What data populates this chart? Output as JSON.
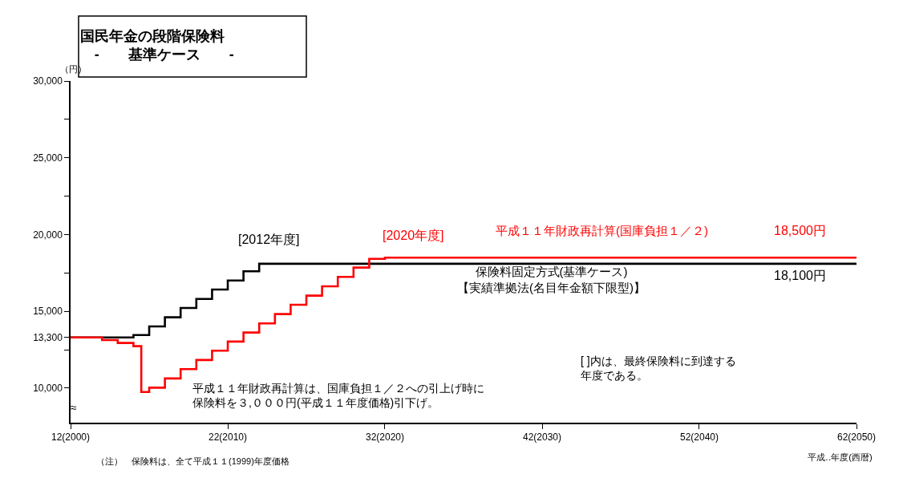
{
  "chart_data": {
    "type": "step",
    "title": "国民年金の段階保険料\n　-　　基準ケース　　-",
    "ylabel": "（円）",
    "xlabel": "平成‥年度(西暦)",
    "xlim": [
      "2000",
      "2050"
    ],
    "xticks": [
      {
        "value": "2000",
        "label": "12(2000)"
      },
      {
        "value": "2010",
        "label": "22(2010)"
      },
      {
        "value": "2020",
        "label": "32(2020)"
      },
      {
        "value": "2030",
        "label": "42(2030)"
      },
      {
        "value": "2040",
        "label": "52(2040)"
      },
      {
        "value": "2050",
        "label": "62(2050)"
      }
    ],
    "ylim": [
      7750,
      30000
    ],
    "yticks": [
      {
        "value": 10000,
        "label": "10,000"
      },
      {
        "value": 12500,
        "label": null
      },
      {
        "value": 13300,
        "label": "13,300"
      },
      {
        "value": 15000,
        "label": "15,000"
      },
      {
        "value": 17500,
        "label": null
      },
      {
        "value": 20000,
        "label": "20,000"
      },
      {
        "value": 22500,
        "label": null
      },
      {
        "value": 25000,
        "label": "25,000"
      },
      {
        "value": 27500,
        "label": null
      },
      {
        "value": 30000,
        "label": "30,000"
      }
    ],
    "grid": false,
    "legend": false,
    "series": [
      {
        "name": "平成１１年財政再計算(国庫負担１／２)",
        "color": "#ff0000",
        "x": [
          "2000",
          "2002",
          "2003",
          "2004",
          "2004-07",
          "2005",
          "2006",
          "2007",
          "2008",
          "2009",
          "2010",
          "2011",
          "2012",
          "2013",
          "2014",
          "2015",
          "2016",
          "2017",
          "2018",
          "2019",
          "2020",
          "2050"
        ],
        "values": [
          13300,
          13130,
          12940,
          12730,
          9750,
          10030,
          10630,
          11240,
          11830,
          12440,
          13030,
          13620,
          14210,
          14820,
          15430,
          16020,
          16630,
          17240,
          17850,
          18420,
          18500,
          18500
        ]
      },
      {
        "name": "保険料固定方式(基準ケース)\n【実績準拠法(名目年金額下限型)】",
        "color": "#000000",
        "x": [
          "2000",
          "2004",
          "2005",
          "2006",
          "2007",
          "2008",
          "2009",
          "2010",
          "2011",
          "2012",
          "2050"
        ],
        "values": [
          13300,
          13460,
          14020,
          14610,
          15220,
          15810,
          16420,
          17010,
          17610,
          18100,
          18100
        ]
      }
    ],
    "annotations": [
      {
        "text": "[2012年度]",
        "x": "2012",
        "y": 18100
      },
      {
        "text": "[2020年度]",
        "x": "2020",
        "y": 18500
      },
      {
        "text": "18,500円",
        "x": "2050",
        "y": 18500
      },
      {
        "text": "18,100円",
        "x": "2050",
        "y": 18100
      },
      "平成１１年財政再計算は、国庫負担１／２への引上げ時に保険料を３,０００円(平成１１年度価格)引下げ。",
      "[ ]内は、最終保険料に到達する年度である。",
      "（注）　保険料は、全て平成１１(1999)年度価格",
      "≈"
    ]
  }
}
